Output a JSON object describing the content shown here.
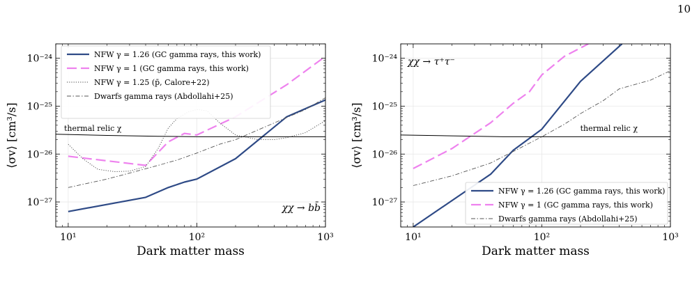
{
  "page": {
    "number": "10"
  },
  "chart_data": [
    {
      "type": "line",
      "title": "",
      "xlabel": "Dark matter mass",
      "ylabel": "⟨σv⟩ [cm³/s]",
      "xscale": "log",
      "yscale": "log",
      "xlim": [
        8,
        1000
      ],
      "ylim": [
        3e-28,
        2e-24
      ],
      "grid": true,
      "xticks": [
        {
          "value": 10,
          "label": "10¹"
        },
        {
          "value": 100,
          "label": "10²"
        },
        {
          "value": 1000,
          "label": "10³"
        }
      ],
      "yticks": [
        {
          "value": 1e-27,
          "label": "10⁻²⁷"
        },
        {
          "value": 1e-26,
          "label": "10⁻²⁶"
        },
        {
          "value": 1e-25,
          "label": "10⁻²⁵"
        },
        {
          "value": 1e-24,
          "label": "10⁻²⁴"
        }
      ],
      "legend_position": "top-left",
      "annotations": [
        {
          "text": "thermal relic χ",
          "x": 10,
          "y": 3e-26
        },
        {
          "text": "χχ → bb̄",
          "x": 350,
          "y": 6.5e-28
        }
      ],
      "series": [
        {
          "name": "NFW γ = 1.26 (GC gamma rays, this work)",
          "color": "#2e4a86",
          "style": "solid",
          "width": 2.2,
          "x": [
            10,
            40,
            60,
            80,
            100,
            200,
            500,
            1000
          ],
          "y": [
            6.3e-28,
            1.25e-27,
            2e-27,
            2.6e-27,
            3e-27,
            8e-27,
            6e-26,
            1.35e-25
          ]
        },
        {
          "name": "NFW γ = 1 (GC gamma rays, this work)",
          "color": "#ee82ee",
          "style": "longdash",
          "width": 2.2,
          "x": [
            10,
            40,
            60,
            80,
            100,
            200,
            500,
            1000
          ],
          "y": [
            9e-27,
            5.8e-27,
            1.8e-26,
            2.7e-26,
            2.5e-26,
            6e-26,
            2.8e-25,
            1.1e-24
          ]
        },
        {
          "name": "NFW γ = 1.25 (p̄, Calore+22)",
          "color": "#444444",
          "style": "dotted",
          "width": 0.9,
          "x": [
            10,
            13,
            17,
            23,
            30,
            40,
            50,
            60,
            70,
            85,
            100,
            120,
            150,
            200,
            300,
            400,
            500,
            700,
            1000
          ],
          "y": [
            1.6e-26,
            8e-27,
            4.8e-27,
            4.3e-27,
            4.4e-27,
            5.5e-27,
            1.3e-26,
            3.5e-26,
            5.5e-26,
            7.5e-26,
            8.5e-26,
            8e-26,
            4.5e-26,
            2.5e-26,
            2e-26,
            2e-26,
            2.2e-26,
            2.8e-26,
            5e-26
          ]
        },
        {
          "name": "Dwarfs gamma rays (Abdollahi+25)",
          "color": "#555555",
          "style": "dashdot",
          "width": 0.9,
          "x": [
            10,
            20,
            30,
            50,
            70,
            100,
            150,
            200,
            300,
            500,
            700,
            1000
          ],
          "y": [
            2e-27,
            3e-27,
            4e-27,
            5.8e-27,
            7.5e-27,
            1.05e-26,
            1.6e-26,
            2e-26,
            3.2e-26,
            5.8e-26,
            8.5e-26,
            1.5e-25
          ]
        },
        {
          "name": "",
          "color": "#000000",
          "style": "solid",
          "width": 1.0,
          "x": [
            8,
            20,
            50,
            100,
            200,
            500,
            1000
          ],
          "y": [
            2.6e-26,
            2.45e-26,
            2.35e-26,
            2.3e-26,
            2.3e-26,
            2.3e-26,
            2.3e-26
          ]
        }
      ]
    },
    {
      "type": "line",
      "title": "",
      "xlabel": "Dark matter mass",
      "ylabel": "⟨σv⟩ [cm³/s]",
      "xscale": "log",
      "yscale": "log",
      "xlim": [
        8,
        1000
      ],
      "ylim": [
        3e-28,
        2e-24
      ],
      "grid": true,
      "xticks": [
        {
          "value": 10,
          "label": "10¹"
        },
        {
          "value": 100,
          "label": "10²"
        },
        {
          "value": 1000,
          "label": "10³"
        }
      ],
      "yticks": [
        {
          "value": 1e-27,
          "label": "10⁻²⁷"
        },
        {
          "value": 1e-26,
          "label": "10⁻²⁶"
        },
        {
          "value": 1e-25,
          "label": "10⁻²⁵"
        },
        {
          "value": 1e-24,
          "label": "10⁻²⁴"
        }
      ],
      "legend_position": "bottom-right",
      "annotations": [
        {
          "text": "χχ → τ⁺τ⁻",
          "x": 10,
          "y": 1e-24
        },
        {
          "text": "thermal relic χ",
          "x": 300,
          "y": 2.9e-26
        }
      ],
      "series": [
        {
          "name": "NFW γ = 1.26 (GC gamma rays, this work)",
          "color": "#2e4a86",
          "style": "solid",
          "width": 2.2,
          "x": [
            10,
            40,
            60,
            100,
            200,
            420
          ],
          "y": [
            3e-28,
            3.8e-27,
            1.2e-26,
            3.3e-26,
            3.3e-25,
            2e-24
          ]
        },
        {
          "name": "NFW γ = 1 (GC gamma rays, this work)",
          "color": "#ee82ee",
          "style": "longdash",
          "width": 2.2,
          "x": [
            10,
            20,
            40,
            60,
            80,
            100,
            150,
            230
          ],
          "y": [
            5e-27,
            1.3e-26,
            4.5e-26,
            1.15e-25,
            2e-25,
            4.5e-25,
            1.1e-24,
            2e-24
          ]
        },
        {
          "name": "Dwarfs gamma rays (Abdollahi+25)",
          "color": "#555555",
          "style": "dashdot",
          "width": 0.9,
          "x": [
            10,
            20,
            40,
            70,
            100,
            150,
            200,
            300,
            400,
            700,
            1000
          ],
          "y": [
            2.2e-27,
            3.5e-27,
            6.5e-27,
            1.4e-26,
            2.3e-26,
            4.2e-26,
            7e-26,
            1.3e-25,
            2.3e-25,
            3.5e-25,
            5.5e-25
          ]
        },
        {
          "name": "",
          "color": "#000000",
          "style": "solid",
          "width": 1.0,
          "x": [
            8,
            20,
            50,
            100,
            200,
            500,
            1000
          ],
          "y": [
            2.5e-26,
            2.4e-26,
            2.3e-26,
            2.3e-26,
            2.3e-26,
            2.3e-26,
            2.3e-26
          ]
        }
      ]
    }
  ]
}
